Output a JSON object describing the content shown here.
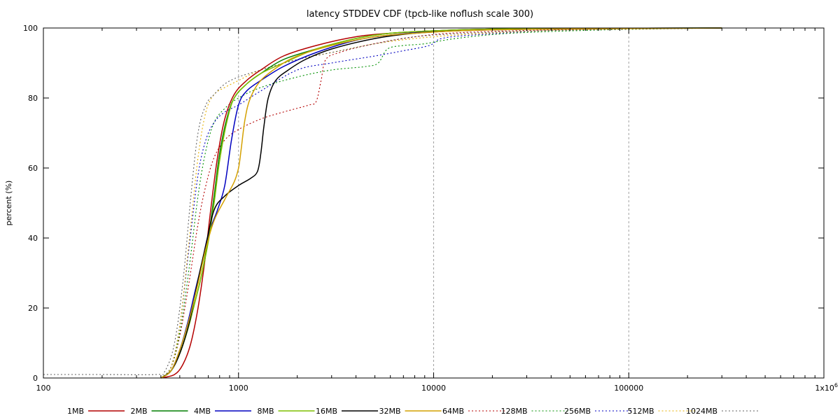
{
  "chart_data": {
    "type": "line",
    "title": "latency STDDEV CDF (tpcb-like noflush scale 300)",
    "xlabel": "",
    "ylabel": "percent (%)",
    "xscale": "log",
    "xlim": [
      100,
      1000000
    ],
    "ylim": [
      0,
      100
    ],
    "xticks": [
      {
        "value": 100,
        "label": "100"
      },
      {
        "value": 1000,
        "label": "1000"
      },
      {
        "value": 10000,
        "label": "10000"
      },
      {
        "value": 100000,
        "label": "100000"
      },
      {
        "value": 1000000,
        "label": "1x10",
        "sup": "6"
      }
    ],
    "yticks": [
      0,
      20,
      40,
      60,
      80,
      100
    ],
    "grid": "vertical dashed at major x ticks",
    "legend_position": "bottom",
    "series": [
      {
        "name": "1MB",
        "color": "#b40000",
        "dash": "solid",
        "points": [
          [
            400,
            0
          ],
          [
            470,
            1
          ],
          [
            520,
            4
          ],
          [
            570,
            10
          ],
          [
            620,
            20
          ],
          [
            670,
            33
          ],
          [
            720,
            48
          ],
          [
            780,
            63
          ],
          [
            850,
            74
          ],
          [
            950,
            81
          ],
          [
            1100,
            85
          ],
          [
            1300,
            88
          ],
          [
            1700,
            92
          ],
          [
            2500,
            95
          ],
          [
            4000,
            97.5
          ],
          [
            6000,
            98.5
          ],
          [
            10000,
            99.2
          ],
          [
            20000,
            99.7
          ],
          [
            60000,
            99.9
          ],
          [
            300000,
            100
          ]
        ]
      },
      {
        "name": "2MB",
        "color": "#007f00",
        "dash": "solid",
        "points": [
          [
            400,
            0
          ],
          [
            450,
            2
          ],
          [
            500,
            7
          ],
          [
            550,
            14
          ],
          [
            600,
            22
          ],
          [
            650,
            30
          ],
          [
            700,
            40
          ],
          [
            750,
            52
          ],
          [
            800,
            64
          ],
          [
            870,
            74
          ],
          [
            950,
            80
          ],
          [
            1100,
            84
          ],
          [
            1300,
            87
          ],
          [
            1700,
            91
          ],
          [
            2500,
            94
          ],
          [
            4000,
            97
          ],
          [
            6000,
            98.5
          ],
          [
            10000,
            99.2
          ],
          [
            20000,
            99.7
          ],
          [
            60000,
            99.9
          ],
          [
            300000,
            100
          ]
        ]
      },
      {
        "name": "4MB",
        "color": "#0000c0",
        "dash": "solid",
        "points": [
          [
            400,
            0
          ],
          [
            450,
            2
          ],
          [
            500,
            8
          ],
          [
            550,
            16
          ],
          [
            600,
            25
          ],
          [
            650,
            33
          ],
          [
            700,
            41
          ],
          [
            780,
            48
          ],
          [
            850,
            55
          ],
          [
            920,
            68
          ],
          [
            1000,
            78
          ],
          [
            1100,
            82
          ],
          [
            1300,
            85
          ],
          [
            1700,
            89
          ],
          [
            2500,
            93
          ],
          [
            4000,
            96.5
          ],
          [
            6000,
            98
          ],
          [
            10000,
            99
          ],
          [
            20000,
            99.6
          ],
          [
            60000,
            99.9
          ],
          [
            300000,
            100
          ]
        ]
      },
      {
        "name": "8MB",
        "color": "#7fbf00",
        "dash": "solid",
        "points": [
          [
            400,
            0
          ],
          [
            450,
            2
          ],
          [
            500,
            7
          ],
          [
            550,
            14
          ],
          [
            600,
            22
          ],
          [
            650,
            30
          ],
          [
            700,
            39
          ],
          [
            750,
            50
          ],
          [
            800,
            62
          ],
          [
            870,
            73
          ],
          [
            950,
            80
          ],
          [
            1100,
            84
          ],
          [
            1300,
            87
          ],
          [
            1700,
            90
          ],
          [
            2500,
            94
          ],
          [
            4000,
            97
          ],
          [
            6000,
            98.5
          ],
          [
            10000,
            99.2
          ],
          [
            20000,
            99.7
          ],
          [
            60000,
            99.9
          ],
          [
            300000,
            100
          ]
        ]
      },
      {
        "name": "16MB",
        "color": "#000000",
        "dash": "solid",
        "points": [
          [
            400,
            0
          ],
          [
            450,
            2
          ],
          [
            500,
            7
          ],
          [
            560,
            16
          ],
          [
            620,
            28
          ],
          [
            680,
            38
          ],
          [
            750,
            48
          ],
          [
            850,
            52
          ],
          [
            1000,
            55
          ],
          [
            1150,
            57
          ],
          [
            1250,
            59
          ],
          [
            1300,
            64
          ],
          [
            1350,
            72
          ],
          [
            1420,
            80
          ],
          [
            1550,
            85
          ],
          [
            1800,
            88
          ],
          [
            2200,
            91
          ],
          [
            3000,
            94
          ],
          [
            5000,
            97
          ],
          [
            8000,
            98.5
          ],
          [
            15000,
            99.3
          ],
          [
            40000,
            99.7
          ],
          [
            300000,
            100
          ]
        ]
      },
      {
        "name": "32MB",
        "color": "#d4a000",
        "dash": "solid",
        "points": [
          [
            400,
            0
          ],
          [
            450,
            2
          ],
          [
            500,
            8
          ],
          [
            560,
            17
          ],
          [
            620,
            27
          ],
          [
            680,
            37
          ],
          [
            750,
            45
          ],
          [
            850,
            51
          ],
          [
            950,
            56
          ],
          [
            1000,
            60
          ],
          [
            1030,
            65
          ],
          [
            1080,
            74
          ],
          [
            1150,
            80
          ],
          [
            1300,
            85
          ],
          [
            1600,
            89
          ],
          [
            2000,
            92
          ],
          [
            3000,
            95
          ],
          [
            5000,
            97.5
          ],
          [
            8000,
            98.5
          ],
          [
            15000,
            99.3
          ],
          [
            40000,
            99.7
          ],
          [
            300000,
            100
          ]
        ]
      },
      {
        "name": "64MB",
        "color": "#b40000",
        "dash": "dotted",
        "points": [
          [
            400,
            0
          ],
          [
            450,
            3
          ],
          [
            500,
            12
          ],
          [
            560,
            28
          ],
          [
            620,
            44
          ],
          [
            680,
            55
          ],
          [
            750,
            63
          ],
          [
            850,
            68
          ],
          [
            1000,
            71
          ],
          [
            1300,
            74
          ],
          [
            1700,
            76
          ],
          [
            2300,
            78
          ],
          [
            2500,
            79
          ],
          [
            2650,
            85
          ],
          [
            2800,
            91
          ],
          [
            3300,
            93
          ],
          [
            4500,
            95
          ],
          [
            7000,
            97
          ],
          [
            12000,
            98.5
          ],
          [
            30000,
            99.3
          ],
          [
            100000,
            99.8
          ],
          [
            300000,
            100
          ]
        ]
      },
      {
        "name": "128MB",
        "color": "#009000",
        "dash": "dotted",
        "points": [
          [
            400,
            0
          ],
          [
            450,
            3
          ],
          [
            500,
            13
          ],
          [
            560,
            32
          ],
          [
            620,
            52
          ],
          [
            680,
            65
          ],
          [
            750,
            73
          ],
          [
            850,
            77
          ],
          [
            1000,
            80
          ],
          [
            1300,
            83
          ],
          [
            2000,
            86
          ],
          [
            3000,
            88
          ],
          [
            4500,
            89
          ],
          [
            5200,
            90
          ],
          [
            5800,
            94
          ],
          [
            7000,
            95
          ],
          [
            9000,
            95.5
          ],
          [
            13000,
            97
          ],
          [
            25000,
            98.5
          ],
          [
            80000,
            99.5
          ],
          [
            300000,
            100
          ]
        ]
      },
      {
        "name": "256MB",
        "color": "#0000c0",
        "dash": "dotted",
        "points": [
          [
            400,
            0
          ],
          [
            450,
            3
          ],
          [
            500,
            15
          ],
          [
            560,
            38
          ],
          [
            620,
            58
          ],
          [
            680,
            68
          ],
          [
            750,
            73
          ],
          [
            850,
            76
          ],
          [
            1000,
            78
          ],
          [
            1300,
            82
          ],
          [
            2000,
            88
          ],
          [
            3000,
            90
          ],
          [
            5000,
            92
          ],
          [
            7000,
            93.5
          ],
          [
            9500,
            95
          ],
          [
            11000,
            97
          ],
          [
            16000,
            98
          ],
          [
            40000,
            99.3
          ],
          [
            100000,
            99.7
          ],
          [
            300000,
            100
          ]
        ]
      },
      {
        "name": "512MB",
        "color": "#e6b000",
        "dash": "dotted",
        "points": [
          [
            400,
            0
          ],
          [
            450,
            3
          ],
          [
            500,
            15
          ],
          [
            560,
            40
          ],
          [
            620,
            63
          ],
          [
            680,
            76
          ],
          [
            750,
            81
          ],
          [
            850,
            83
          ],
          [
            1000,
            85
          ],
          [
            1300,
            88
          ],
          [
            2000,
            91
          ],
          [
            3000,
            93
          ],
          [
            5000,
            95.5
          ],
          [
            8000,
            97
          ],
          [
            15000,
            98.2
          ],
          [
            40000,
            99.3
          ],
          [
            100000,
            99.7
          ],
          [
            300000,
            100
          ]
        ]
      },
      {
        "name": "1024MB",
        "color": "#606060",
        "dash": "dotted",
        "points": [
          [
            100,
            1
          ],
          [
            200,
            1
          ],
          [
            380,
            1
          ],
          [
            420,
            2
          ],
          [
            470,
            10
          ],
          [
            520,
            28
          ],
          [
            570,
            52
          ],
          [
            620,
            70
          ],
          [
            680,
            78
          ],
          [
            750,
            81
          ],
          [
            850,
            84
          ],
          [
            1000,
            86
          ],
          [
            1300,
            88
          ],
          [
            2000,
            91
          ],
          [
            3000,
            93
          ],
          [
            5000,
            95.5
          ],
          [
            8000,
            97.5
          ],
          [
            15000,
            98.5
          ],
          [
            40000,
            99.3
          ],
          [
            100000,
            99.7
          ],
          [
            300000,
            100
          ]
        ]
      }
    ]
  }
}
